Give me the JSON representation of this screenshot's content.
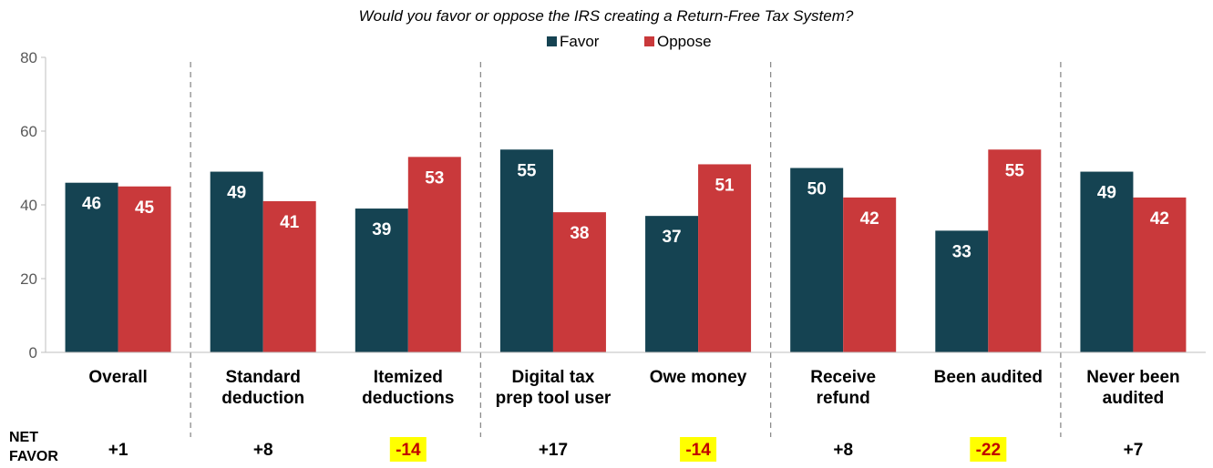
{
  "chart_data": {
    "type": "bar",
    "title": "Would you favor or oppose the IRS creating a Return-Free Tax System?",
    "categories": [
      [
        "Overall"
      ],
      [
        "Standard",
        "deduction"
      ],
      [
        "Itemized",
        "deductions"
      ],
      [
        "Digital tax",
        "prep tool user"
      ],
      [
        "Owe money"
      ],
      [
        "Receive",
        "refund"
      ],
      [
        "Been audited"
      ],
      [
        "Never been",
        "audited"
      ]
    ],
    "series": [
      {
        "name": "Favor",
        "color": "#154352",
        "values": [
          46,
          49,
          39,
          55,
          37,
          50,
          33,
          49
        ]
      },
      {
        "name": "Oppose",
        "color": "#c9393b",
        "values": [
          45,
          41,
          53,
          38,
          51,
          42,
          55,
          42
        ]
      }
    ],
    "ylim": [
      0,
      80
    ],
    "yticks": [
      0,
      20,
      40,
      60,
      80
    ],
    "legend": "top-center",
    "grid": false,
    "group_dividers_after": [
      0,
      2,
      4,
      6
    ],
    "net_favor": {
      "label": [
        "NET",
        "FAVOR"
      ],
      "values": [
        "+1",
        "+8",
        "-14",
        "+17",
        "-14",
        "+8",
        "-22",
        "+7"
      ],
      "highlighted": [
        false,
        false,
        true,
        false,
        true,
        false,
        true,
        false
      ],
      "highlight_color": "#ffff00",
      "highlight_text_color": "#c00000"
    }
  }
}
